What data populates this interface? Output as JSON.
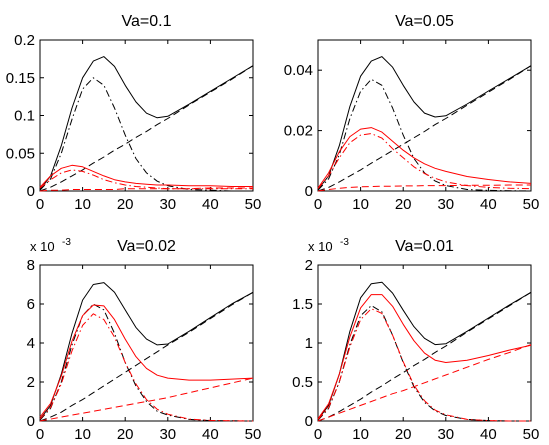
{
  "chart_data": [
    {
      "type": "line",
      "title": "Va=0.1",
      "xlim": [
        0,
        50
      ],
      "ylim": [
        0,
        0.2
      ],
      "xticks": [
        "0",
        "10",
        "20",
        "30",
        "40",
        "50"
      ],
      "yticks": [
        "0",
        "0.05",
        "0.1",
        "0.15",
        "0.2"
      ],
      "multiplier": "",
      "exponent": "",
      "x": [
        0,
        2.5,
        5,
        7.5,
        10,
        12.5,
        15,
        17.5,
        20,
        22.5,
        25,
        27.5,
        30,
        35,
        40,
        45,
        50
      ],
      "series": [
        {
          "color": "#000000",
          "dash": "solid",
          "values": [
            0.002,
            0.02,
            0.06,
            0.11,
            0.15,
            0.172,
            0.178,
            0.165,
            0.14,
            0.118,
            0.103,
            0.097,
            0.099,
            0.115,
            0.132,
            0.149,
            0.166
          ]
        },
        {
          "color": "#000000",
          "dash": "dashdot",
          "values": [
            0.001,
            0.016,
            0.05,
            0.095,
            0.135,
            0.15,
            0.14,
            0.11,
            0.074,
            0.043,
            0.024,
            0.013,
            0.007,
            0.002,
            0.001,
            0.0,
            0.0
          ]
        },
        {
          "color": "#000000",
          "dash": "dashed",
          "values": [
            0.0,
            0.005,
            0.012,
            0.02,
            0.028,
            0.037,
            0.045,
            0.054,
            0.062,
            0.071,
            0.079,
            0.088,
            0.096,
            0.114,
            0.131,
            0.148,
            0.166
          ]
        },
        {
          "color": "#ff0000",
          "dash": "solid",
          "values": [
            0.005,
            0.02,
            0.03,
            0.034,
            0.032,
            0.026,
            0.02,
            0.015,
            0.012,
            0.01,
            0.009,
            0.008,
            0.008,
            0.007,
            0.007,
            0.006,
            0.006
          ]
        },
        {
          "color": "#ff0000",
          "dash": "dashdot",
          "values": [
            0.004,
            0.015,
            0.024,
            0.028,
            0.026,
            0.021,
            0.015,
            0.011,
            0.008,
            0.006,
            0.005,
            0.004,
            0.003,
            0.003,
            0.003,
            0.003,
            0.003
          ]
        },
        {
          "color": "#ff0000",
          "dash": "dashed",
          "values": [
            0.0,
            0.001,
            0.001,
            0.002,
            0.002,
            0.002,
            0.002,
            0.002,
            0.003,
            0.003,
            0.003,
            0.003,
            0.003,
            0.003,
            0.004,
            0.004,
            0.004
          ]
        }
      ]
    },
    {
      "type": "line",
      "title": "Va=0.05",
      "xlim": [
        0,
        50
      ],
      "ylim": [
        0,
        0.05
      ],
      "xticks": [
        "0",
        "10",
        "20",
        "30",
        "40",
        "50"
      ],
      "yticks": [
        "0",
        "0.02",
        "0.04"
      ],
      "multiplier": "",
      "exponent": "",
      "x": [
        0,
        2.5,
        5,
        7.5,
        10,
        12.5,
        15,
        17.5,
        20,
        22.5,
        25,
        27.5,
        30,
        35,
        40,
        45,
        50
      ],
      "series": [
        {
          "color": "#000000",
          "dash": "solid",
          "values": [
            0.0005,
            0.005,
            0.015,
            0.028,
            0.038,
            0.043,
            0.0445,
            0.041,
            0.035,
            0.0295,
            0.0258,
            0.0245,
            0.0249,
            0.0288,
            0.0331,
            0.0373,
            0.0415
          ]
        },
        {
          "color": "#000000",
          "dash": "dashdot",
          "values": [
            0.0003,
            0.004,
            0.012,
            0.024,
            0.033,
            0.037,
            0.035,
            0.0275,
            0.0185,
            0.0108,
            0.006,
            0.0033,
            0.0018,
            0.0005,
            0.0002,
            0.0001,
            0.0
          ]
        },
        {
          "color": "#000000",
          "dash": "dashed",
          "values": [
            0.0,
            0.0012,
            0.003,
            0.005,
            0.007,
            0.0092,
            0.0113,
            0.0134,
            0.0155,
            0.0176,
            0.0197,
            0.022,
            0.024,
            0.0284,
            0.0327,
            0.037,
            0.0415
          ]
        },
        {
          "color": "#ff0000",
          "dash": "solid",
          "values": [
            0.001,
            0.006,
            0.013,
            0.018,
            0.0205,
            0.021,
            0.0195,
            0.0165,
            0.0135,
            0.011,
            0.009,
            0.0075,
            0.0065,
            0.0048,
            0.0038,
            0.003,
            0.0025
          ]
        },
        {
          "color": "#ff0000",
          "dash": "dashdot",
          "values": [
            0.0008,
            0.005,
            0.011,
            0.016,
            0.0185,
            0.019,
            0.0175,
            0.014,
            0.011,
            0.008,
            0.0058,
            0.0042,
            0.003,
            0.0018,
            0.0012,
            0.0009,
            0.0008
          ]
        },
        {
          "color": "#ff0000",
          "dash": "dashed",
          "values": [
            0.0,
            0.0005,
            0.0009,
            0.0012,
            0.0014,
            0.0015,
            0.0016,
            0.0016,
            0.0017,
            0.0017,
            0.0018,
            0.0018,
            0.0018,
            0.0019,
            0.0019,
            0.002,
            0.002
          ]
        }
      ]
    },
    {
      "type": "line",
      "title": "Va=0.02",
      "xlim": [
        0,
        50
      ],
      "ylim": [
        0,
        8
      ],
      "xticks": [
        "0",
        "10",
        "20",
        "30",
        "40",
        "50"
      ],
      "yticks": [
        "0",
        "2",
        "4",
        "6",
        "8"
      ],
      "multiplier": "x 10",
      "exponent": "-3",
      "x": [
        0,
        2.5,
        5,
        7.5,
        10,
        12.5,
        15,
        17.5,
        20,
        22.5,
        25,
        27.5,
        30,
        35,
        40,
        45,
        50
      ],
      "series": [
        {
          "color": "#000000",
          "dash": "solid",
          "values": [
            0.1,
            0.8,
            2.4,
            4.5,
            6.2,
            7.0,
            7.1,
            6.6,
            5.7,
            4.8,
            4.2,
            3.9,
            3.95,
            4.6,
            5.3,
            6.0,
            6.6
          ]
        },
        {
          "color": "#000000",
          "dash": "dashdot",
          "values": [
            0.05,
            0.65,
            2.0,
            3.9,
            5.4,
            6.0,
            5.7,
            4.5,
            3.0,
            1.8,
            1.0,
            0.5,
            0.3,
            0.08,
            0.02,
            0.01,
            0.0
          ]
        },
        {
          "color": "#000000",
          "dash": "dashed",
          "values": [
            0.0,
            0.2,
            0.45,
            0.8,
            1.1,
            1.45,
            1.8,
            2.15,
            2.5,
            2.85,
            3.2,
            3.55,
            3.9,
            4.55,
            5.25,
            5.95,
            6.6
          ]
        },
        {
          "color": "#ff0000",
          "dash": "solid",
          "values": [
            0.2,
            0.9,
            2.3,
            4.1,
            5.4,
            5.95,
            5.9,
            5.2,
            4.2,
            3.3,
            2.7,
            2.35,
            2.2,
            2.1,
            2.1,
            2.15,
            2.2
          ]
        },
        {
          "color": "#ff0000",
          "dash": "dashdot",
          "values": [
            0.1,
            0.7,
            1.9,
            3.6,
            4.9,
            5.5,
            5.2,
            4.3,
            3.0,
            1.9,
            1.1,
            0.6,
            0.35,
            0.1,
            0.03,
            0.01,
            0.0
          ]
        },
        {
          "color": "#ff0000",
          "dash": "dashed",
          "values": [
            0.0,
            0.1,
            0.2,
            0.3,
            0.4,
            0.5,
            0.6,
            0.7,
            0.8,
            0.9,
            1.0,
            1.1,
            1.2,
            1.45,
            1.7,
            1.95,
            2.2
          ]
        }
      ]
    },
    {
      "type": "line",
      "title": "Va=0.01",
      "xlim": [
        0,
        50
      ],
      "ylim": [
        0,
        2
      ],
      "xticks": [
        "0",
        "10",
        "20",
        "30",
        "40",
        "50"
      ],
      "yticks": [
        "0",
        "0.5",
        "1",
        "1.5",
        "2"
      ],
      "multiplier": "x 10",
      "exponent": "-3",
      "x": [
        0,
        2.5,
        5,
        7.5,
        10,
        12.5,
        15,
        17.5,
        20,
        22.5,
        25,
        27.5,
        30,
        35,
        40,
        45,
        50
      ],
      "series": [
        {
          "color": "#000000",
          "dash": "solid",
          "values": [
            0.02,
            0.2,
            0.6,
            1.15,
            1.58,
            1.76,
            1.78,
            1.64,
            1.42,
            1.21,
            1.06,
            0.98,
            0.99,
            1.15,
            1.32,
            1.49,
            1.65
          ]
        },
        {
          "color": "#000000",
          "dash": "dashdot",
          "values": [
            0.01,
            0.16,
            0.5,
            0.98,
            1.35,
            1.48,
            1.4,
            1.1,
            0.75,
            0.44,
            0.24,
            0.13,
            0.07,
            0.02,
            0.005,
            0.0,
            0.0
          ]
        },
        {
          "color": "#000000",
          "dash": "dashed",
          "values": [
            0.0,
            0.05,
            0.12,
            0.2,
            0.28,
            0.37,
            0.45,
            0.54,
            0.62,
            0.71,
            0.79,
            0.88,
            0.96,
            1.14,
            1.31,
            1.48,
            1.65
          ]
        },
        {
          "color": "#ff0000",
          "dash": "solid",
          "values": [
            0.03,
            0.22,
            0.6,
            1.08,
            1.45,
            1.62,
            1.62,
            1.47,
            1.24,
            1.03,
            0.87,
            0.78,
            0.75,
            0.78,
            0.84,
            0.91,
            0.97
          ]
        },
        {
          "color": "#ff0000",
          "dash": "dashdot",
          "values": [
            0.02,
            0.17,
            0.5,
            0.95,
            1.3,
            1.44,
            1.38,
            1.1,
            0.76,
            0.46,
            0.26,
            0.14,
            0.08,
            0.02,
            0.005,
            0.0,
            0.0
          ]
        },
        {
          "color": "#ff0000",
          "dash": "dashed",
          "values": [
            0.0,
            0.05,
            0.1,
            0.15,
            0.2,
            0.25,
            0.3,
            0.35,
            0.39,
            0.44,
            0.49,
            0.54,
            0.59,
            0.69,
            0.79,
            0.88,
            0.98
          ]
        }
      ]
    }
  ]
}
